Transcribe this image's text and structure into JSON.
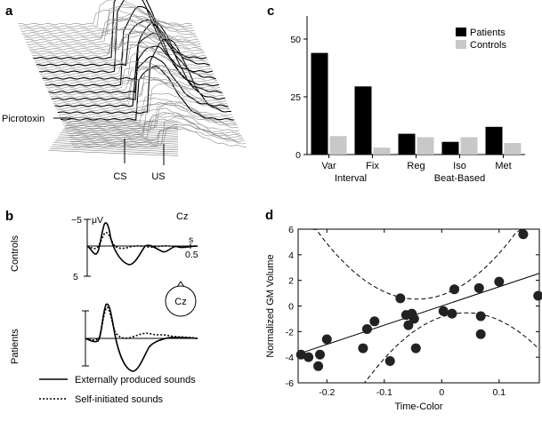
{
  "figure_panels": {
    "a": {
      "label": "a",
      "annotation_picrotoxin": "Picrotoxin",
      "axis_cs": "CS",
      "axis_us": "US"
    },
    "b": {
      "label": "b",
      "electrode": "Cz",
      "head_label": "Cz",
      "y_top": "−5",
      "y_unit": "μV",
      "y_bottom": "5",
      "x_unit": "s",
      "x_tick": "0.5",
      "row1": "Controls",
      "row2": "Patients",
      "legend_solid": "Externally produced sounds",
      "legend_dotted": "Self-initiated sounds"
    },
    "c": {
      "label": "c"
    },
    "d": {
      "label": "d"
    }
  },
  "chart_data": [
    {
      "type": "bar",
      "panel": "c",
      "categories": [
        "Var",
        "Fix",
        "Reg",
        "Iso",
        "Met"
      ],
      "groups": [
        {
          "name": "Interval",
          "categories": [
            "Var",
            "Fix"
          ]
        },
        {
          "name": "Beat-Based",
          "categories": [
            "Reg",
            "Iso",
            "Met"
          ]
        }
      ],
      "series": [
        {
          "name": "Patients",
          "color": "#000000",
          "values": [
            44,
            29.5,
            9,
            5.5,
            12
          ]
        },
        {
          "name": "Controls",
          "color": "#c8c8c8",
          "values": [
            8,
            3,
            7.5,
            7.5,
            5
          ]
        }
      ],
      "yticks": [
        "0",
        "25",
        "50"
      ],
      "ylim": [
        0,
        60
      ],
      "legend_position": "top-right"
    },
    {
      "type": "scatter",
      "panel": "d",
      "xlabel": "Time-Color",
      "ylabel": "Normalized GM Volume",
      "xlim": [
        -0.25,
        0.17
      ],
      "ylim": [
        -6,
        6
      ],
      "xticks": [
        "-0.2",
        "-0.1",
        "0",
        "0.1"
      ],
      "yticks": [
        "-6",
        "-4",
        "-2",
        "0",
        "2",
        "4",
        "6"
      ],
      "fit_line": {
        "slope": 15,
        "intercept": 0
      },
      "confidence_band": true,
      "points": [
        {
          "x": -0.245,
          "y": -3.8
        },
        {
          "x": -0.232,
          "y": -4.0
        },
        {
          "x": -0.215,
          "y": -4.7
        },
        {
          "x": -0.212,
          "y": -3.8
        },
        {
          "x": -0.2,
          "y": -2.6
        },
        {
          "x": -0.137,
          "y": -3.3
        },
        {
          "x": -0.13,
          "y": -1.8
        },
        {
          "x": -0.117,
          "y": -1.2
        },
        {
          "x": -0.09,
          "y": -4.3
        },
        {
          "x": -0.072,
          "y": 0.6
        },
        {
          "x": -0.062,
          "y": -0.7
        },
        {
          "x": -0.058,
          "y": -1.5
        },
        {
          "x": -0.052,
          "y": -0.6
        },
        {
          "x": -0.048,
          "y": -1.0
        },
        {
          "x": -0.045,
          "y": -3.3
        },
        {
          "x": 0.003,
          "y": -0.4
        },
        {
          "x": 0.018,
          "y": -0.6
        },
        {
          "x": 0.022,
          "y": 1.3
        },
        {
          "x": 0.065,
          "y": 1.4
        },
        {
          "x": 0.068,
          "y": -0.8
        },
        {
          "x": 0.068,
          "y": -2.2
        },
        {
          "x": 0.1,
          "y": 1.9
        },
        {
          "x": 0.142,
          "y": 5.6
        },
        {
          "x": 0.168,
          "y": 0.8
        }
      ]
    }
  ]
}
